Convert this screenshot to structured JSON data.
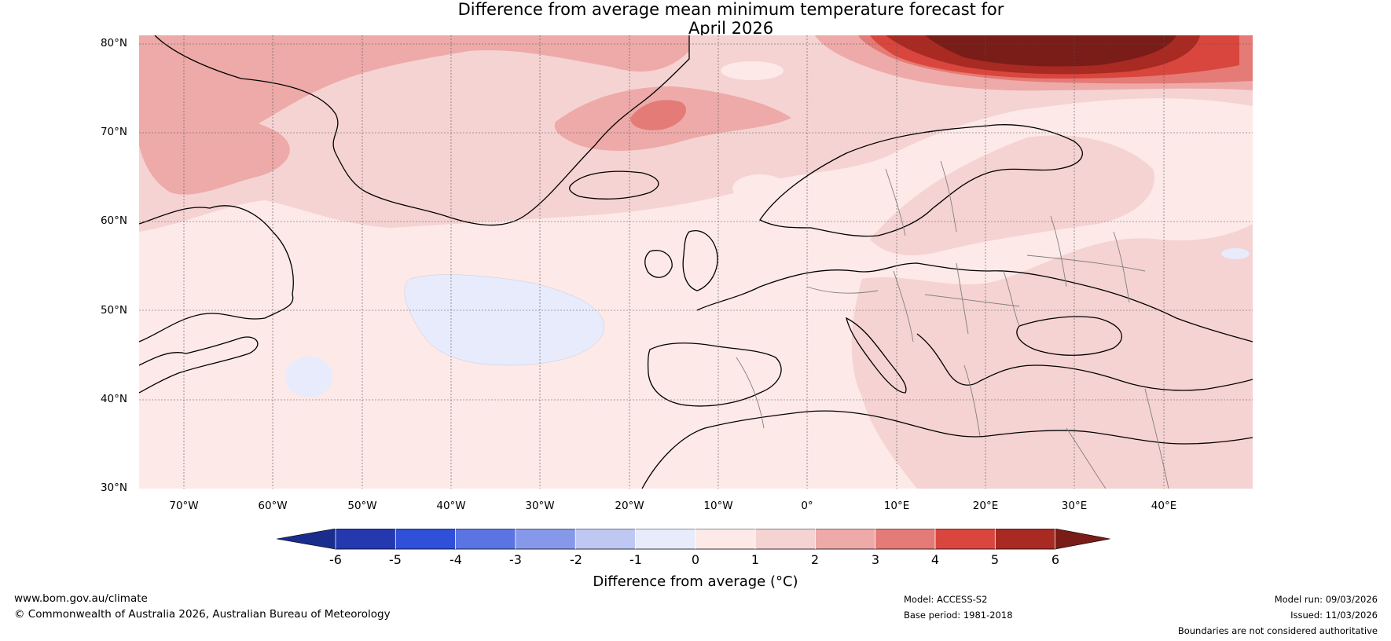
{
  "title_line1": "Difference from average mean minimum temperature forecast for",
  "title_line2": "April 2026",
  "map": {
    "lat_labels": [
      "80°N",
      "70°N",
      "60°N",
      "50°N",
      "40°N",
      "30°N"
    ],
    "lon_labels": [
      "70°W",
      "60°W",
      "50°W",
      "40°W",
      "30°W",
      "20°W",
      "10°W",
      "0°",
      "10°E",
      "20°E",
      "30°E",
      "40°E"
    ],
    "extent": {
      "lon_min": -75,
      "lon_max": 50,
      "lat_min": 30,
      "lat_max": 81
    }
  },
  "colorbar": {
    "ticks": [
      "-6",
      "-5",
      "-4",
      "-3",
      "-2",
      "-1",
      "0",
      "1",
      "2",
      "3",
      "4",
      "5",
      "6"
    ],
    "colors": [
      "#1a2d8c",
      "#2438b0",
      "#3050d9",
      "#5b74e3",
      "#8698ea",
      "#bfc7f3",
      "#e8ebfb",
      "#fce9e8",
      "#f5d3d2",
      "#edaaa8",
      "#e47b76",
      "#d9463d",
      "#a82a22",
      "#7a1c17"
    ],
    "label": "Difference from average (°C)"
  },
  "footer": {
    "website": "www.bom.gov.au/climate",
    "copyright": "© Commonwealth of Australia 2026, Australian Bureau of Meteorology",
    "model": "Model: ACCESS-S2",
    "base_period": "Base period: 1981-2018",
    "model_run": "Model run: 09/03/2026",
    "issued": "Issued: 11/03/2026",
    "disclaimer": "Boundaries are not considered authoritative"
  }
}
